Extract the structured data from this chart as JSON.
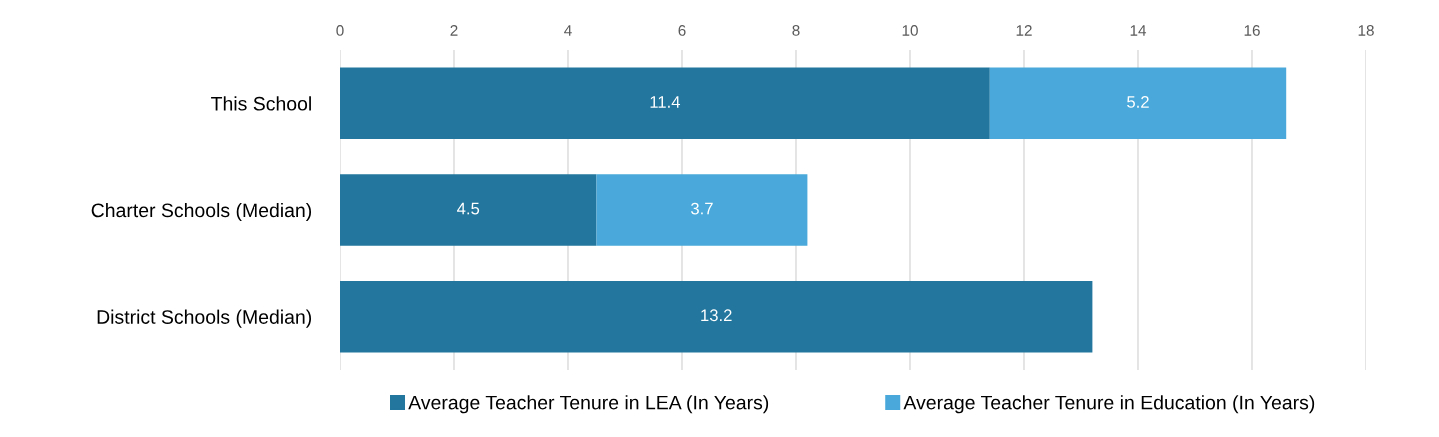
{
  "chart_data": {
    "type": "bar",
    "orientation": "horizontal",
    "stacked": true,
    "categories": [
      "This School",
      "Charter Schools (Median)",
      "District Schools (Median)"
    ],
    "series": [
      {
        "name": "Average Teacher Tenure in LEA (In Years)",
        "color": "#23779e",
        "values": [
          11.4,
          4.5,
          13.2
        ]
      },
      {
        "name": "Average Teacher Tenure in Education (In Years)",
        "color": "#4aa9da",
        "values": [
          5.2,
          3.7,
          null
        ]
      }
    ],
    "xlim": [
      0,
      18
    ],
    "xticks": [
      0,
      2,
      4,
      6,
      8,
      10,
      12,
      14,
      16,
      18
    ],
    "grid": "x",
    "legend": "bottom",
    "data_labels": true
  }
}
